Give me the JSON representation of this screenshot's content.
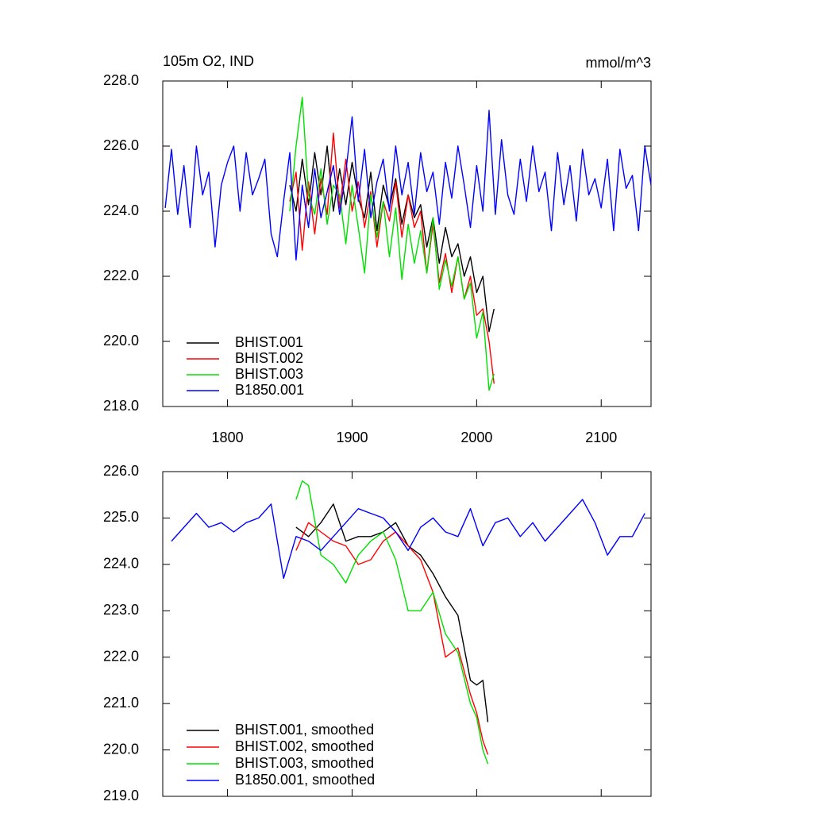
{
  "chart_data": [
    {
      "type": "line",
      "title": "105m O2, IND",
      "units": "mmol/m^3",
      "xlim": [
        1748,
        2140
      ],
      "xticks": [
        1800,
        1900,
        2000,
        2100
      ],
      "ylim": [
        218,
        228
      ],
      "yticks": [
        {
          "value": 218,
          "label": "218.0"
        },
        {
          "value": 220,
          "label": "220.0"
        },
        {
          "value": 222,
          "label": "222.0"
        },
        {
          "value": 224,
          "label": "224.0"
        },
        {
          "value": 226,
          "label": "226.0"
        },
        {
          "value": 228,
          "label": "228.0"
        }
      ],
      "legend": "lower left",
      "series": [
        {
          "name": "BHIST.001",
          "color": "#000000",
          "x": [
            1850,
            1855,
            1860,
            1865,
            1870,
            1875,
            1880,
            1885,
            1890,
            1895,
            1900,
            1905,
            1910,
            1915,
            1920,
            1925,
            1930,
            1935,
            1940,
            1945,
            1950,
            1955,
            1960,
            1965,
            1970,
            1975,
            1980,
            1985,
            1990,
            1995,
            2000,
            2005,
            2010,
            2014
          ],
          "values": [
            224.8,
            224.0,
            225.6,
            224.2,
            225.8,
            224.5,
            226.0,
            224.0,
            225.3,
            224.2,
            225.5,
            224.4,
            223.8,
            225.2,
            223.4,
            224.8,
            224.1,
            225.0,
            223.6,
            224.5,
            223.8,
            224.2,
            222.9,
            223.8,
            222.4,
            223.5,
            222.6,
            223.0,
            222.0,
            222.6,
            221.5,
            222.0,
            220.3,
            221.0
          ]
        },
        {
          "name": "BHIST.002",
          "color": "#ff0000",
          "x": [
            1850,
            1855,
            1860,
            1865,
            1870,
            1875,
            1880,
            1885,
            1890,
            1895,
            1900,
            1905,
            1910,
            1915,
            1920,
            1925,
            1930,
            1935,
            1940,
            1945,
            1950,
            1955,
            1960,
            1965,
            1970,
            1975,
            1980,
            1985,
            1990,
            1995,
            2000,
            2005,
            2010,
            2014
          ],
          "values": [
            224.3,
            225.2,
            222.8,
            224.9,
            223.3,
            225.0,
            223.9,
            226.4,
            224.1,
            225.6,
            224.0,
            224.9,
            223.5,
            224.6,
            222.9,
            224.3,
            223.7,
            224.9,
            223.2,
            224.5,
            223.5,
            224.0,
            222.1,
            223.6,
            221.8,
            222.7,
            221.5,
            222.6,
            221.3,
            222.0,
            220.8,
            221.0,
            220.0,
            218.7
          ]
        },
        {
          "name": "BHIST.003",
          "color": "#00e000",
          "x": [
            1850,
            1855,
            1860,
            1865,
            1870,
            1875,
            1880,
            1885,
            1890,
            1895,
            1900,
            1905,
            1910,
            1915,
            1920,
            1925,
            1930,
            1935,
            1940,
            1945,
            1950,
            1955,
            1960,
            1965,
            1970,
            1975,
            1980,
            1985,
            1990,
            1995,
            2000,
            2005,
            2010,
            2014
          ],
          "values": [
            224.0,
            226.0,
            227.5,
            224.5,
            223.9,
            225.3,
            223.6,
            224.8,
            224.5,
            223.0,
            224.8,
            223.5,
            222.1,
            224.5,
            223.2,
            224.3,
            222.6,
            224.1,
            221.9,
            223.6,
            222.4,
            223.4,
            222.1,
            223.8,
            221.6,
            222.5,
            221.7,
            222.6,
            221.3,
            221.8,
            220.1,
            220.9,
            218.5,
            219.0
          ]
        },
        {
          "name": "B1850.001",
          "color": "#0000ff",
          "x": [
            1750,
            1755,
            1760,
            1765,
            1770,
            1775,
            1780,
            1785,
            1790,
            1795,
            1800,
            1805,
            1810,
            1815,
            1820,
            1825,
            1830,
            1835,
            1840,
            1845,
            1850,
            1855,
            1860,
            1865,
            1870,
            1875,
            1880,
            1885,
            1890,
            1895,
            1900,
            1905,
            1910,
            1915,
            1920,
            1925,
            1930,
            1935,
            1940,
            1945,
            1950,
            1955,
            1960,
            1965,
            1970,
            1975,
            1980,
            1985,
            1990,
            1995,
            2000,
            2005,
            2010,
            2015,
            2020,
            2025,
            2030,
            2035,
            2040,
            2045,
            2050,
            2055,
            2060,
            2065,
            2070,
            2075,
            2080,
            2085,
            2090,
            2095,
            2100,
            2105,
            2110,
            2115,
            2120,
            2125,
            2130,
            2135,
            2140
          ],
          "values": [
            224.1,
            225.9,
            223.9,
            225.4,
            223.5,
            226.0,
            224.5,
            225.2,
            222.9,
            224.8,
            225.5,
            226.0,
            224.0,
            225.8,
            224.5,
            225.0,
            225.6,
            223.3,
            222.6,
            224.3,
            225.8,
            222.5,
            224.8,
            223.5,
            225.3,
            223.8,
            224.6,
            225.4,
            223.9,
            225.2,
            226.9,
            224.3,
            225.9,
            223.8,
            224.9,
            225.6,
            224.0,
            226.0,
            224.5,
            225.5,
            223.9,
            225.8,
            224.6,
            225.2,
            223.6,
            225.5,
            224.4,
            226.0,
            224.8,
            223.5,
            225.4,
            224.0,
            227.1,
            223.9,
            226.2,
            224.5,
            223.9,
            225.6,
            224.3,
            226.0,
            224.6,
            225.2,
            223.4,
            225.8,
            224.2,
            225.4,
            223.7,
            225.9,
            224.5,
            225.0,
            224.1,
            225.6,
            223.4,
            225.9,
            224.7,
            225.1,
            223.4,
            226.0,
            224.8
          ]
        }
      ]
    },
    {
      "type": "line",
      "xlim": [
        1748,
        2140
      ],
      "xticks": [
        1800,
        1900,
        2000,
        2100
      ],
      "ylim": [
        219,
        226
      ],
      "yticks": [
        {
          "value": 219,
          "label": "219.0"
        },
        {
          "value": 220,
          "label": "220.0"
        },
        {
          "value": 221,
          "label": "221.0"
        },
        {
          "value": 222,
          "label": "222.0"
        },
        {
          "value": 223,
          "label": "223.0"
        },
        {
          "value": 224,
          "label": "224.0"
        },
        {
          "value": 225,
          "label": "225.0"
        },
        {
          "value": 226,
          "label": "226.0"
        }
      ],
      "legend": "lower left",
      "series": [
        {
          "name": "BHIST.001, smoothed",
          "color": "#000000",
          "x": [
            1855,
            1865,
            1875,
            1885,
            1895,
            1905,
            1915,
            1925,
            1935,
            1945,
            1955,
            1965,
            1975,
            1985,
            1995,
            2000,
            2005,
            2009
          ],
          "values": [
            224.8,
            224.6,
            224.9,
            225.3,
            224.5,
            224.6,
            224.6,
            224.7,
            224.9,
            224.4,
            224.2,
            223.8,
            223.3,
            222.9,
            221.5,
            221.4,
            221.5,
            220.6
          ]
        },
        {
          "name": "BHIST.002, smoothed",
          "color": "#ff0000",
          "x": [
            1855,
            1865,
            1875,
            1885,
            1895,
            1905,
            1915,
            1925,
            1935,
            1945,
            1955,
            1965,
            1975,
            1985,
            1995,
            2000,
            2005,
            2009
          ],
          "values": [
            224.3,
            224.9,
            224.7,
            224.5,
            224.4,
            224.0,
            224.1,
            224.5,
            224.7,
            224.4,
            224.1,
            223.4,
            222.0,
            222.2,
            221.2,
            220.8,
            220.2,
            219.9
          ]
        },
        {
          "name": "BHIST.003, smoothed",
          "color": "#00e000",
          "x": [
            1855,
            1860,
            1865,
            1875,
            1885,
            1895,
            1905,
            1915,
            1925,
            1935,
            1945,
            1955,
            1965,
            1975,
            1985,
            1995,
            2000,
            2005,
            2009
          ],
          "values": [
            225.4,
            225.8,
            225.7,
            224.2,
            224.0,
            223.6,
            224.2,
            224.5,
            224.7,
            224.1,
            223.0,
            223.0,
            223.4,
            222.5,
            222.1,
            221.0,
            220.7,
            220.0,
            219.7
          ]
        },
        {
          "name": "B1850.001, smoothed",
          "color": "#0000ff",
          "x": [
            1755,
            1765,
            1775,
            1785,
            1795,
            1805,
            1815,
            1825,
            1835,
            1845,
            1855,
            1865,
            1875,
            1885,
            1895,
            1905,
            1915,
            1925,
            1935,
            1945,
            1955,
            1965,
            1975,
            1985,
            1995,
            2005,
            2015,
            2025,
            2035,
            2045,
            2055,
            2065,
            2075,
            2085,
            2095,
            2105,
            2115,
            2125,
            2135
          ],
          "values": [
            224.5,
            224.8,
            225.1,
            224.8,
            224.9,
            224.7,
            224.9,
            225.0,
            225.3,
            223.7,
            224.6,
            224.5,
            224.3,
            224.6,
            224.9,
            225.2,
            225.1,
            225.0,
            224.7,
            224.3,
            224.8,
            225.0,
            224.7,
            224.6,
            225.2,
            224.4,
            224.9,
            225.0,
            224.6,
            224.9,
            224.5,
            224.8,
            225.1,
            225.4,
            224.9,
            224.2,
            224.6,
            224.6,
            225.1
          ]
        }
      ]
    }
  ]
}
